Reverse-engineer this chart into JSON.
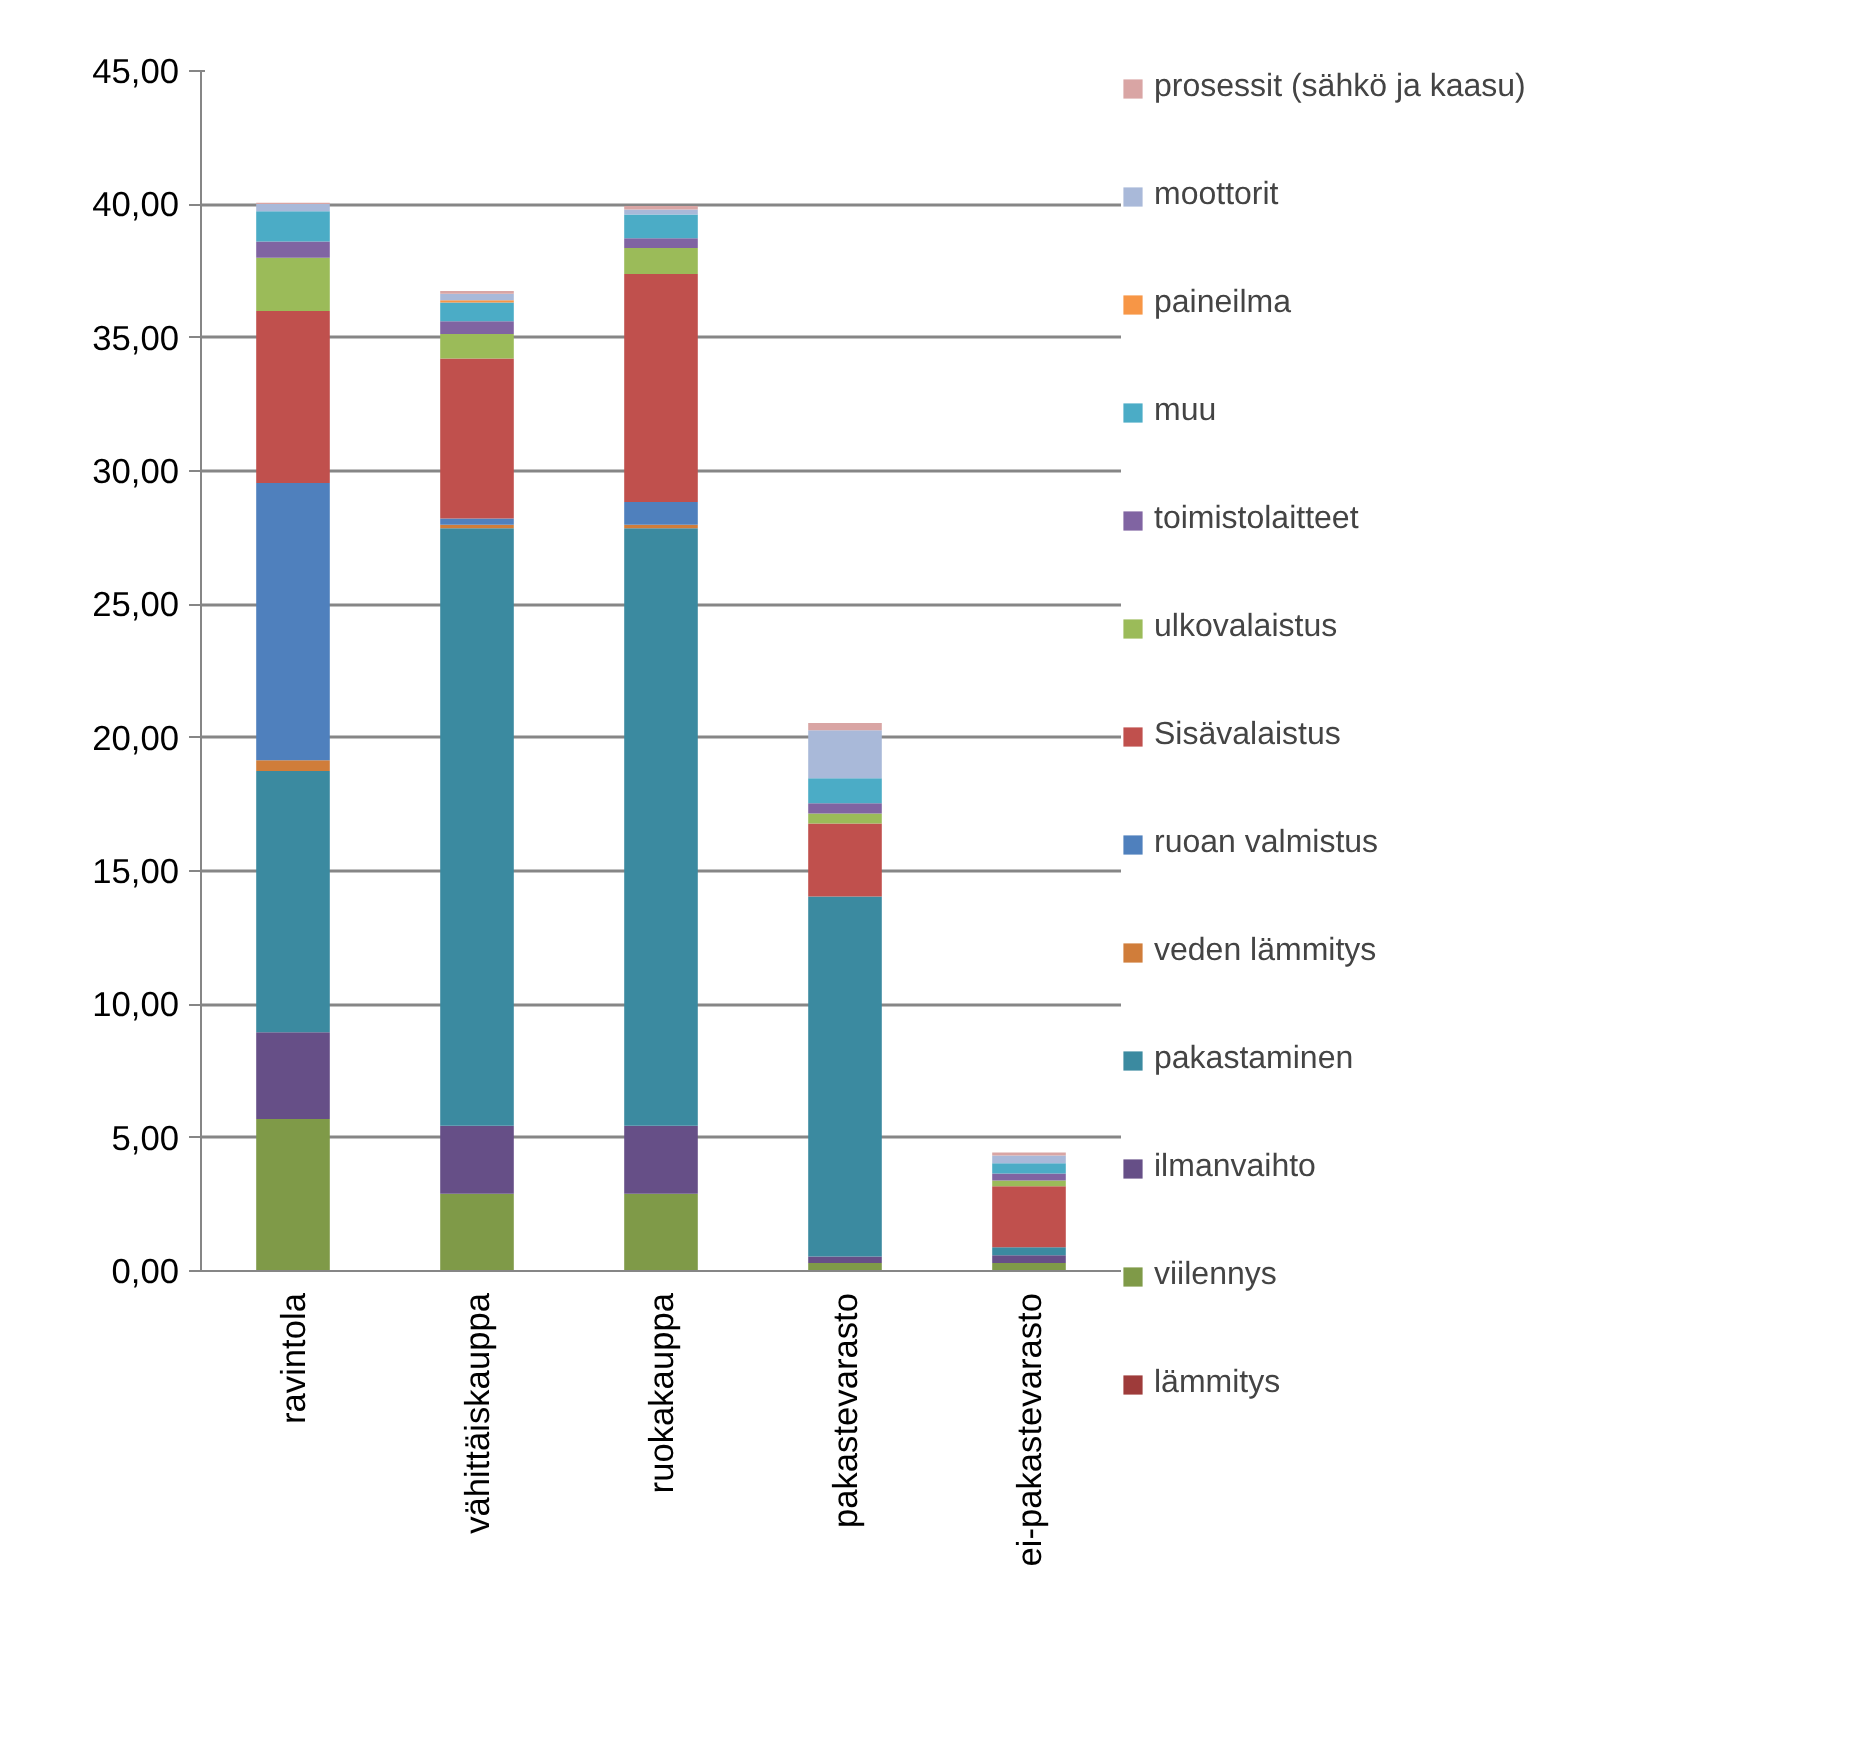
{
  "chart_data": {
    "type": "bar",
    "stacked": true,
    "categories": [
      "ravintola",
      "vähittäiskauppa",
      "ruokakauppa",
      "pakastevarasto",
      "ei-pakastevarasto"
    ],
    "ylim": [
      0,
      45
    ],
    "yticks": [
      {
        "value": 0,
        "label": "0,00"
      },
      {
        "value": 5,
        "label": "5,00"
      },
      {
        "value": 10,
        "label": "10,00"
      },
      {
        "value": 15,
        "label": "15,00"
      },
      {
        "value": 20,
        "label": "20,00"
      },
      {
        "value": 25,
        "label": "25,00"
      },
      {
        "value": 30,
        "label": "30,00"
      },
      {
        "value": 35,
        "label": "35,00"
      },
      {
        "value": 40,
        "label": "40,00"
      },
      {
        "value": 45,
        "label": "45,00"
      }
    ],
    "grid": "y",
    "legend": "right",
    "series": [
      {
        "name": "lämmitys",
        "color": "#9e3b3a",
        "values": [
          0,
          0,
          0,
          0,
          0
        ]
      },
      {
        "name": "viilennys",
        "color": "#7f9a48",
        "values": [
          5.7,
          2.9,
          2.9,
          0.3,
          0.3
        ]
      },
      {
        "name": "ilmanvaihto",
        "color": "#664f87",
        "values": [
          3.25,
          2.55,
          2.55,
          0.24,
          0.29
        ]
      },
      {
        "name": "pakastaminen",
        "color": "#3b8aa0",
        "values": [
          9.8,
          22.4,
          22.4,
          13.5,
          0.3
        ]
      },
      {
        "name": "veden lämmitys",
        "color": "#d07d3a",
        "values": [
          0.4,
          0.13,
          0.13,
          0,
          0
        ]
      },
      {
        "name": "ruoan valmistus",
        "color": "#4f80bd",
        "values": [
          10.4,
          0.24,
          0.86,
          0,
          0
        ]
      },
      {
        "name": "Sisävalaistus",
        "color": "#c0504d",
        "values": [
          6.45,
          6.0,
          8.55,
          2.74,
          2.29
        ]
      },
      {
        "name": "ulkovalaistus",
        "color": "#9bbb59",
        "values": [
          2.0,
          0.92,
          0.97,
          0.38,
          0.21
        ]
      },
      {
        "name": "toimistolaitteet",
        "color": "#8064a2",
        "values": [
          0.61,
          0.48,
          0.37,
          0.38,
          0.27
        ]
      },
      {
        "name": "muu",
        "color": "#4bacc6",
        "values": [
          1.13,
          0.7,
          0.89,
          0.94,
          0.38
        ]
      },
      {
        "name": "paineilma",
        "color": "#f79646",
        "values": [
          0,
          0.08,
          0,
          0,
          0
        ]
      },
      {
        "name": "moottorit",
        "color": "#a9b9d9",
        "values": [
          0.27,
          0.25,
          0.19,
          1.8,
          0.29
        ]
      },
      {
        "name": "prosessit (sähkö ja kaasu)",
        "color": "#d9a5a4",
        "values": [
          0.05,
          0.1,
          0.13,
          0.27,
          0.11
        ]
      }
    ]
  }
}
